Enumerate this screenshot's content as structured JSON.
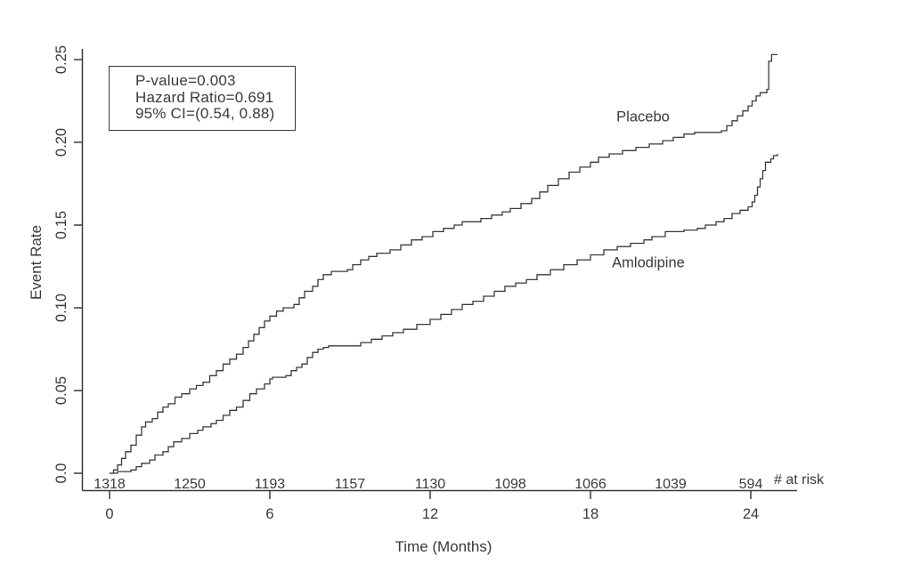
{
  "figure": {
    "background": "#ffffff",
    "ink_color": "#3a3a3a"
  },
  "chart_data": {
    "type": "line",
    "subtype": "kaplan-meier-step-curves",
    "title": "",
    "xlabel": "Time (Months)",
    "ylabel": "Event Rate",
    "xlim": [
      0,
      25
    ],
    "ylim": [
      0,
      0.25
    ],
    "grid": false,
    "legend_position": "labels-next-to-curves",
    "x_ticks": {
      "values": [
        0,
        6,
        12,
        18,
        24
      ],
      "labels": [
        "0",
        "6",
        "12",
        "18",
        "24"
      ]
    },
    "y_ticks": {
      "values": [
        0,
        0.05,
        0.1,
        0.15,
        0.2,
        0.25
      ],
      "labels": [
        "0.0",
        "0.05",
        "0.10",
        "0.15",
        "0.20",
        "0.25"
      ]
    },
    "stats_box": {
      "lines": [
        "P-value=0.003",
        "Hazard Ratio=0.691",
        "95% CI=(0.54, 0.88)"
      ]
    },
    "series": [
      {
        "name": "Placebo",
        "points": [
          [
            0,
            0
          ],
          [
            0.15,
            0.002
          ],
          [
            0.3,
            0.005
          ],
          [
            0.45,
            0.009
          ],
          [
            0.6,
            0.013
          ],
          [
            0.8,
            0.017
          ],
          [
            1,
            0.023
          ],
          [
            1.2,
            0.028
          ],
          [
            1.35,
            0.031
          ],
          [
            1.6,
            0.033
          ],
          [
            1.8,
            0.037
          ],
          [
            2,
            0.04
          ],
          [
            2.2,
            0.042
          ],
          [
            2.45,
            0.046
          ],
          [
            2.7,
            0.048
          ],
          [
            3,
            0.051
          ],
          [
            3.25,
            0.053
          ],
          [
            3.5,
            0.055
          ],
          [
            3.75,
            0.059
          ],
          [
            4,
            0.062
          ],
          [
            4.25,
            0.066
          ],
          [
            4.5,
            0.069
          ],
          [
            4.75,
            0.072
          ],
          [
            5,
            0.076
          ],
          [
            5.2,
            0.08
          ],
          [
            5.4,
            0.084
          ],
          [
            5.6,
            0.088
          ],
          [
            5.8,
            0.092
          ],
          [
            6,
            0.095
          ],
          [
            6.25,
            0.098
          ],
          [
            6.5,
            0.1
          ],
          [
            6.9,
            0.102
          ],
          [
            7.1,
            0.106
          ],
          [
            7.3,
            0.11
          ],
          [
            7.6,
            0.113
          ],
          [
            7.8,
            0.117
          ],
          [
            8,
            0.12
          ],
          [
            8.3,
            0.122
          ],
          [
            8.9,
            0.123
          ],
          [
            9.1,
            0.126
          ],
          [
            9.4,
            0.129
          ],
          [
            9.7,
            0.131
          ],
          [
            10,
            0.133
          ],
          [
            10.5,
            0.135
          ],
          [
            10.9,
            0.138
          ],
          [
            11.3,
            0.141
          ],
          [
            11.7,
            0.143
          ],
          [
            12.1,
            0.146
          ],
          [
            12.5,
            0.148
          ],
          [
            12.9,
            0.15
          ],
          [
            13.2,
            0.152
          ],
          [
            13.9,
            0.154
          ],
          [
            14.3,
            0.156
          ],
          [
            14.7,
            0.158
          ],
          [
            15,
            0.16
          ],
          [
            15.4,
            0.163
          ],
          [
            15.8,
            0.166
          ],
          [
            16.1,
            0.17
          ],
          [
            16.4,
            0.174
          ],
          [
            16.8,
            0.178
          ],
          [
            17.2,
            0.182
          ],
          [
            17.6,
            0.185
          ],
          [
            18,
            0.188
          ],
          [
            18.3,
            0.191
          ],
          [
            18.7,
            0.193
          ],
          [
            19.2,
            0.195
          ],
          [
            19.7,
            0.197
          ],
          [
            20.2,
            0.199
          ],
          [
            20.7,
            0.201
          ],
          [
            21.1,
            0.203
          ],
          [
            21.5,
            0.205
          ],
          [
            21.9,
            0.206
          ],
          [
            22.9,
            0.207
          ],
          [
            23.1,
            0.21
          ],
          [
            23.3,
            0.213
          ],
          [
            23.5,
            0.216
          ],
          [
            23.7,
            0.219
          ],
          [
            23.9,
            0.222
          ],
          [
            24.05,
            0.225
          ],
          [
            24.2,
            0.228
          ],
          [
            24.35,
            0.23
          ],
          [
            24.6,
            0.232
          ],
          [
            24.67,
            0.249
          ],
          [
            24.78,
            0.253
          ],
          [
            25,
            0.253
          ]
        ]
      },
      {
        "name": "Amlodipine",
        "points": [
          [
            0,
            0
          ],
          [
            0.3,
            0.001
          ],
          [
            0.8,
            0.002
          ],
          [
            1,
            0.004
          ],
          [
            1.2,
            0.006
          ],
          [
            1.5,
            0.008
          ],
          [
            1.7,
            0.011
          ],
          [
            2,
            0.013
          ],
          [
            2.2,
            0.016
          ],
          [
            2.4,
            0.019
          ],
          [
            2.7,
            0.021
          ],
          [
            3,
            0.024
          ],
          [
            3.3,
            0.026
          ],
          [
            3.5,
            0.028
          ],
          [
            3.8,
            0.03
          ],
          [
            4,
            0.032
          ],
          [
            4.25,
            0.035
          ],
          [
            4.5,
            0.038
          ],
          [
            4.75,
            0.04
          ],
          [
            5,
            0.044
          ],
          [
            5.25,
            0.048
          ],
          [
            5.5,
            0.051
          ],
          [
            5.8,
            0.054
          ],
          [
            6,
            0.057
          ],
          [
            6.1,
            0.058
          ],
          [
            6.6,
            0.059
          ],
          [
            6.8,
            0.062
          ],
          [
            7,
            0.064
          ],
          [
            7.2,
            0.066
          ],
          [
            7.4,
            0.07
          ],
          [
            7.6,
            0.073
          ],
          [
            7.8,
            0.075
          ],
          [
            8,
            0.076
          ],
          [
            8.2,
            0.077
          ],
          [
            9,
            0.077
          ],
          [
            9.4,
            0.079
          ],
          [
            9.8,
            0.081
          ],
          [
            10.2,
            0.083
          ],
          [
            10.6,
            0.085
          ],
          [
            11,
            0.087
          ],
          [
            11.5,
            0.09
          ],
          [
            12,
            0.093
          ],
          [
            12.4,
            0.096
          ],
          [
            12.8,
            0.099
          ],
          [
            13.2,
            0.102
          ],
          [
            13.6,
            0.104
          ],
          [
            14,
            0.107
          ],
          [
            14.4,
            0.11
          ],
          [
            14.8,
            0.113
          ],
          [
            15.2,
            0.115
          ],
          [
            15.6,
            0.117
          ],
          [
            16,
            0.12
          ],
          [
            16.5,
            0.123
          ],
          [
            17,
            0.126
          ],
          [
            17.5,
            0.129
          ],
          [
            18,
            0.132
          ],
          [
            18.5,
            0.135
          ],
          [
            19,
            0.137
          ],
          [
            19.5,
            0.139
          ],
          [
            20,
            0.141
          ],
          [
            20.3,
            0.143
          ],
          [
            20.8,
            0.146
          ],
          [
            21.5,
            0.147
          ],
          [
            22,
            0.148
          ],
          [
            22.3,
            0.15
          ],
          [
            22.7,
            0.152
          ],
          [
            23,
            0.154
          ],
          [
            23.3,
            0.157
          ],
          [
            23.6,
            0.159
          ],
          [
            23.9,
            0.161
          ],
          [
            24.05,
            0.164
          ],
          [
            24.15,
            0.168
          ],
          [
            24.25,
            0.173
          ],
          [
            24.35,
            0.178
          ],
          [
            24.45,
            0.183
          ],
          [
            24.55,
            0.188
          ],
          [
            24.75,
            0.19
          ],
          [
            24.85,
            0.192
          ],
          [
            25,
            0.193
          ]
        ]
      }
    ],
    "at_risk": {
      "label": "# at risk",
      "times": [
        0,
        3,
        6,
        9,
        12,
        15,
        18,
        21,
        24
      ],
      "counts": [
        "1318",
        "1250",
        "1193",
        "1157",
        "1130",
        "1098",
        "1066",
        "1039",
        "594"
      ]
    }
  }
}
